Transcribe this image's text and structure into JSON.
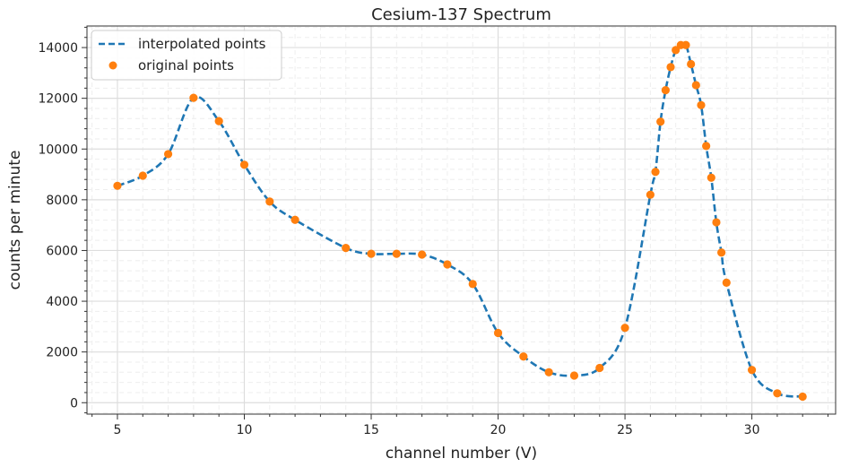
{
  "chart_data": {
    "type": "scatter",
    "title": "Cesium-137 Spectrum",
    "xlabel": "channel number (V)",
    "ylabel": "counts per minute",
    "xlim": [
      3.8,
      33.3
    ],
    "ylim": [
      -450,
      14850
    ],
    "x_ticks": [
      5,
      10,
      15,
      20,
      25,
      30
    ],
    "y_ticks": [
      0,
      2000,
      4000,
      6000,
      8000,
      10000,
      12000,
      14000
    ],
    "x_tick_labels": [
      "5",
      "10",
      "15",
      "20",
      "25",
      "30"
    ],
    "y_tick_labels": [
      "0",
      "2000",
      "4000",
      "6000",
      "8000",
      "10000",
      "12000",
      "14000"
    ],
    "grid": true,
    "minor_grid": true,
    "legend_position": "top-left",
    "series": [
      {
        "name": "interpolated points",
        "style": "dashed-line",
        "color": "#1f77b4",
        "x": [
          5,
          6,
          7,
          8,
          9,
          10,
          11,
          12,
          14,
          15,
          16,
          17,
          18,
          19,
          20,
          21,
          22,
          23,
          24,
          25,
          26,
          26.2,
          26.4,
          26.6,
          26.8,
          27,
          27.2,
          27.4,
          27.6,
          27.8,
          28,
          28.2,
          28.4,
          28.6,
          28.8,
          29,
          30,
          31,
          32
        ],
        "y": [
          8550,
          8950,
          9800,
          12020,
          11100,
          9380,
          7930,
          7210,
          6100,
          5870,
          5870,
          5840,
          5450,
          4680,
          2750,
          1820,
          1200,
          1070,
          1370,
          2950,
          8200,
          9100,
          11080,
          12320,
          13230,
          13900,
          14100,
          14100,
          13350,
          12520,
          11730,
          10120,
          8870,
          7110,
          5920,
          4730,
          1290,
          370,
          240
        ]
      },
      {
        "name": "original points",
        "style": "markers",
        "color": "#ff7f0e",
        "x": [
          5,
          6,
          7,
          8,
          9,
          10,
          11,
          12,
          14,
          15,
          16,
          17,
          18,
          19,
          20,
          21,
          22,
          23,
          24,
          25,
          26,
          26.2,
          26.4,
          26.6,
          26.8,
          27,
          27.2,
          27.4,
          27.6,
          27.8,
          28,
          28.2,
          28.4,
          28.6,
          28.8,
          29,
          30,
          31,
          32
        ],
        "y": [
          8550,
          8950,
          9800,
          12020,
          11100,
          9380,
          7930,
          7210,
          6100,
          5870,
          5870,
          5840,
          5450,
          4680,
          2750,
          1820,
          1200,
          1070,
          1370,
          2950,
          8200,
          9100,
          11080,
          12320,
          13230,
          13900,
          14100,
          14100,
          13350,
          12520,
          11730,
          10120,
          8870,
          7110,
          5920,
          4730,
          1290,
          370,
          240
        ]
      }
    ],
    "colors": {
      "grid": "#dddddd",
      "minor_grid": "#eeeeee",
      "axis": "#333333"
    }
  }
}
